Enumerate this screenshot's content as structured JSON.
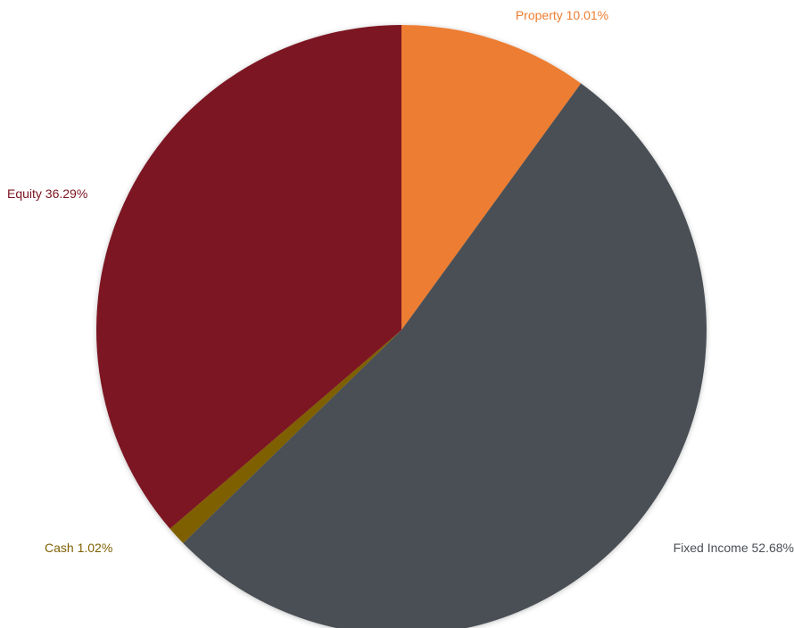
{
  "chart_data": {
    "type": "pie",
    "title": "",
    "start_angle_deg": 0,
    "direction": "clockwise",
    "slices": [
      {
        "label": "Property 10.01%",
        "category": "Property",
        "value": 10.01,
        "color": "#ED7D31"
      },
      {
        "label": "Fixed Income 52.68%",
        "category": "Fixed Income",
        "value": 52.68,
        "color": "#4A4F55"
      },
      {
        "label": "Cash 1.02%",
        "category": "Cash",
        "value": 1.02,
        "color": "#7F6000"
      },
      {
        "label": "Equity 36.29%",
        "category": "Equity",
        "value": 36.29,
        "color": "#7B1321"
      }
    ],
    "label_colors": {
      "Property": "#ED7D31",
      "Fixed Income": "#4A4F55",
      "Cash": "#7F6000",
      "Equity": "#7B1321"
    },
    "legend": "none"
  }
}
